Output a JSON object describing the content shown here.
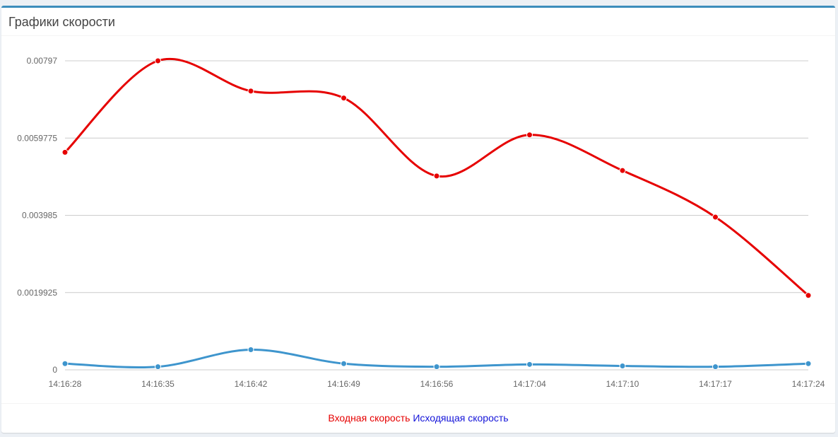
{
  "panel": {
    "title": "Графики скорости"
  },
  "legend": {
    "incoming": "Входная скорость",
    "outgoing": "Исходящая скорость"
  },
  "colors": {
    "incoming": "#e60000",
    "outgoing": "#3e95cd",
    "legend_outgoing": "#1414d9",
    "accent": "#3c8dbc",
    "grid": "#cccccc"
  },
  "chart_data": {
    "type": "line",
    "title": "",
    "xlabel": "",
    "ylabel": "",
    "x": [
      "14:16:28",
      "14:16:35",
      "14:16:42",
      "14:16:49",
      "14:16:56",
      "14:17:04",
      "14:17:10",
      "14:17:17",
      "14:17:24"
    ],
    "y_ticks": [
      0,
      0.0019925,
      0.003985,
      0.0059775,
      0.00797
    ],
    "y_tick_labels": [
      "0",
      "0.0019925",
      "0.003985",
      "0.0059775",
      "0.00797"
    ],
    "ylim": [
      0,
      0.00797
    ],
    "grid": true,
    "legend_position": "bottom",
    "series": [
      {
        "name": "Входная скорость",
        "values": [
          0.00561,
          0.00797,
          0.00719,
          0.00701,
          0.005,
          0.00606,
          0.00514,
          0.00394,
          0.00192
        ]
      },
      {
        "name": "Исходящая скорость",
        "values": [
          0.00016,
          8e-05,
          0.00052,
          0.00016,
          8e-05,
          0.00014,
          0.0001,
          8e-05,
          0.00016
        ]
      }
    ]
  }
}
